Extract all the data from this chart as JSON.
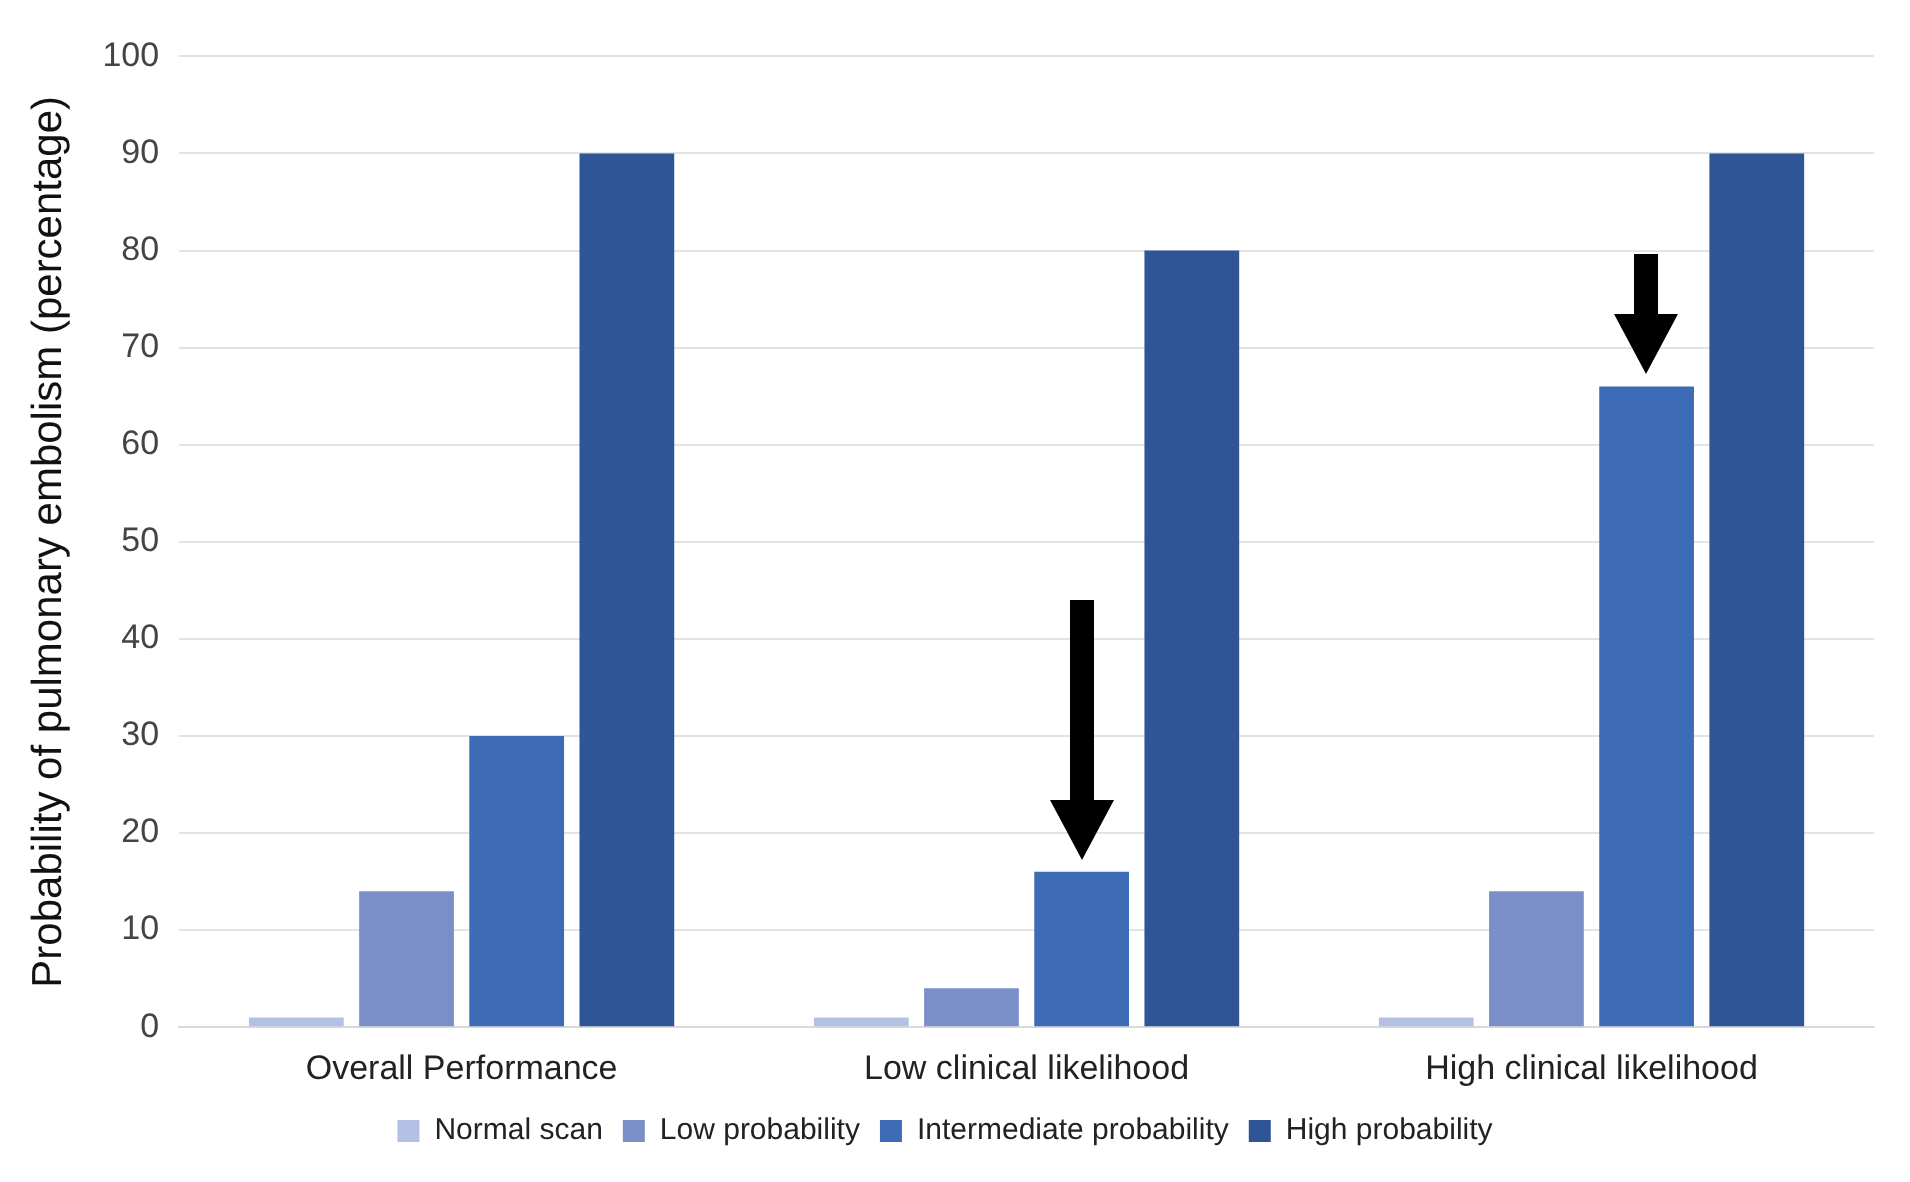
{
  "chart_data": {
    "type": "bar",
    "ylabel": "Probability of pulmonary embolism (percentage)",
    "categories": [
      "Overall Performance",
      "Low clinical likelihood",
      "High clinical likelihood"
    ],
    "series": [
      {
        "name": "Normal scan",
        "color": "#b4c1e4",
        "values": [
          1,
          1,
          1
        ]
      },
      {
        "name": "Low probability",
        "color": "#7a8fc8",
        "values": [
          14,
          4,
          14
        ]
      },
      {
        "name": "Intermediate probability",
        "color": "#3d6bb5",
        "values": [
          30,
          16,
          66
        ]
      },
      {
        "name": "High probability",
        "color": "#2f5597",
        "values": [
          90,
          80,
          90
        ]
      }
    ],
    "ylim": [
      0,
      100
    ],
    "yticks": [
      0,
      10,
      20,
      30,
      40,
      50,
      60,
      70,
      80,
      90,
      100
    ],
    "grid": "y",
    "legend": "bottom"
  }
}
